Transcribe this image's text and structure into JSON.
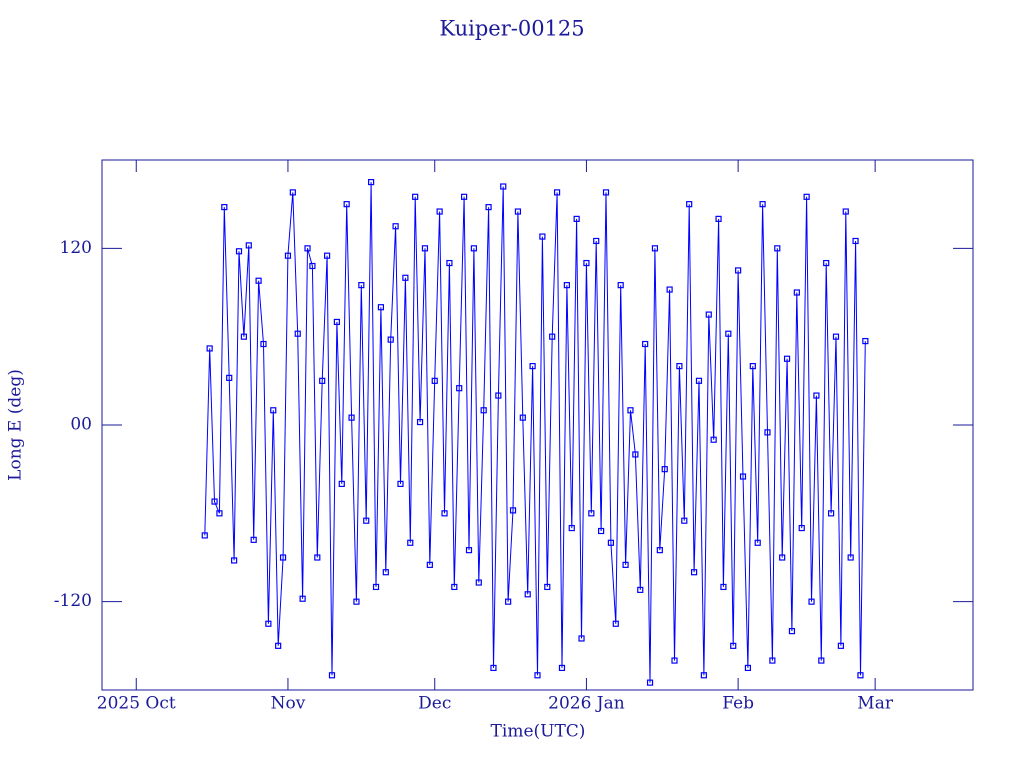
{
  "chart_data": {
    "type": "line",
    "title": "Kuiper-00125",
    "x_label": "Time(UTC)",
    "y_label": "Long E (deg)",
    "x": [
      14,
      15,
      16,
      17,
      18,
      19,
      20,
      21,
      22,
      23,
      24,
      25,
      26,
      27,
      28,
      29,
      30,
      31,
      32,
      33,
      34,
      35,
      36,
      37,
      38,
      39,
      40,
      41,
      42,
      43,
      44,
      45,
      46,
      47,
      48,
      49,
      50,
      51,
      52,
      53,
      54,
      55,
      56,
      57,
      58,
      59,
      60,
      61,
      62,
      63,
      64,
      65,
      66,
      67,
      68,
      69,
      70,
      71,
      72,
      73,
      74,
      75,
      76,
      77,
      78,
      79,
      80,
      81,
      82,
      83,
      84,
      85,
      86,
      87,
      88,
      89,
      90,
      91,
      92,
      93,
      94,
      95,
      96,
      97,
      98,
      99,
      100,
      101,
      102,
      103,
      104,
      105,
      106,
      107,
      108,
      109,
      110,
      111,
      112,
      113,
      114,
      115,
      116,
      117,
      118,
      119,
      120,
      121,
      122,
      123,
      124,
      125,
      126,
      127,
      128,
      129,
      130,
      131,
      132,
      133,
      134,
      135,
      136,
      137,
      138,
      139,
      140,
      141,
      142,
      143,
      144,
      145,
      146,
      147,
      148,
      149
    ],
    "series": [
      {
        "color": "#0000ff",
        "values": [
          -75,
          52,
          -52,
          -60,
          148,
          32,
          -92,
          118,
          60,
          122,
          -78,
          98,
          55,
          -135,
          10,
          -150,
          -90,
          115,
          158,
          62,
          -118,
          120,
          108,
          -90,
          30,
          115,
          -170,
          70,
          -40,
          150,
          5,
          -120,
          95,
          -65,
          165,
          -110,
          80,
          -100,
          58,
          135,
          -40,
          100,
          -80,
          155,
          2,
          120,
          -95,
          30,
          145,
          -60,
          110,
          -110,
          25,
          155,
          -85,
          120,
          -107,
          10,
          148,
          -165,
          20,
          162,
          -120,
          -58,
          145,
          5,
          -115,
          40,
          -170,
          128,
          -110,
          60,
          158,
          -165,
          95,
          -70,
          140,
          -145,
          110,
          -60,
          125,
          -72,
          158,
          -80,
          -135,
          95,
          -95,
          10,
          -20,
          -112,
          55,
          -175,
          120,
          -85,
          -30,
          92,
          -160,
          40,
          -65,
          150,
          -100,
          30,
          -170,
          75,
          -10,
          140,
          -110,
          62,
          -150,
          105,
          -35,
          -165,
          40,
          -80,
          150,
          -5,
          -160,
          120,
          -90,
          45,
          -140,
          90,
          -70,
          155,
          -120,
          20,
          -160,
          110,
          -60,
          60,
          -150,
          145,
          -90,
          125,
          -170,
          57
        ]
      }
    ],
    "xlim": [
      -7,
      171
    ],
    "ylim": [
      -180,
      180
    ],
    "xticks": [
      {
        "value": 0,
        "label": "2025 Oct"
      },
      {
        "value": 31,
        "label": "Nov"
      },
      {
        "value": 61,
        "label": "Dec"
      },
      {
        "value": 92,
        "label": "2026 Jan"
      },
      {
        "value": 123,
        "label": "Feb"
      },
      {
        "value": 151,
        "label": "Mar"
      }
    ],
    "yticks": [
      -120,
      {
        "value": 0,
        "label": "00"
      },
      120
    ]
  }
}
